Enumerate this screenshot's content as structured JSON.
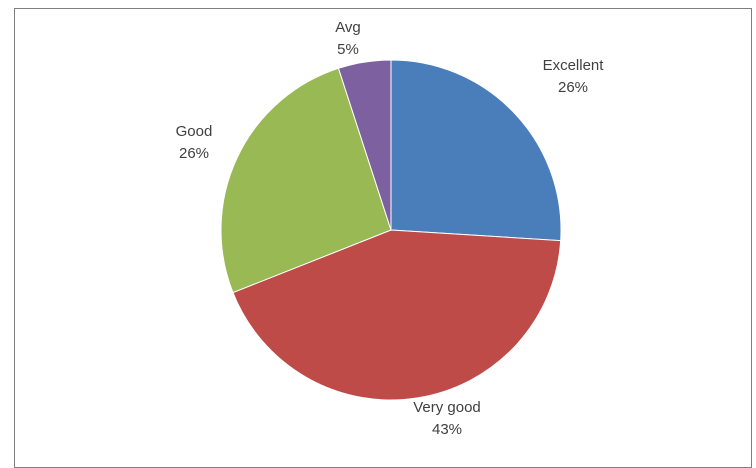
{
  "chart_data": {
    "type": "pie",
    "start_angle_deg": 0,
    "direction": "clockwise",
    "slices": [
      {
        "name": "Excellent",
        "value": 26,
        "label": "26%",
        "color": "#4a7ebb"
      },
      {
        "name": "Very good",
        "value": 43,
        "label": "43%",
        "color": "#be4b48"
      },
      {
        "name": "Good",
        "value": 26,
        "label": "26%",
        "color": "#98b954"
      },
      {
        "name": "Avg",
        "value": 5,
        "label": "5%",
        "color": "#7d60a0"
      }
    ],
    "legend": "none"
  }
}
